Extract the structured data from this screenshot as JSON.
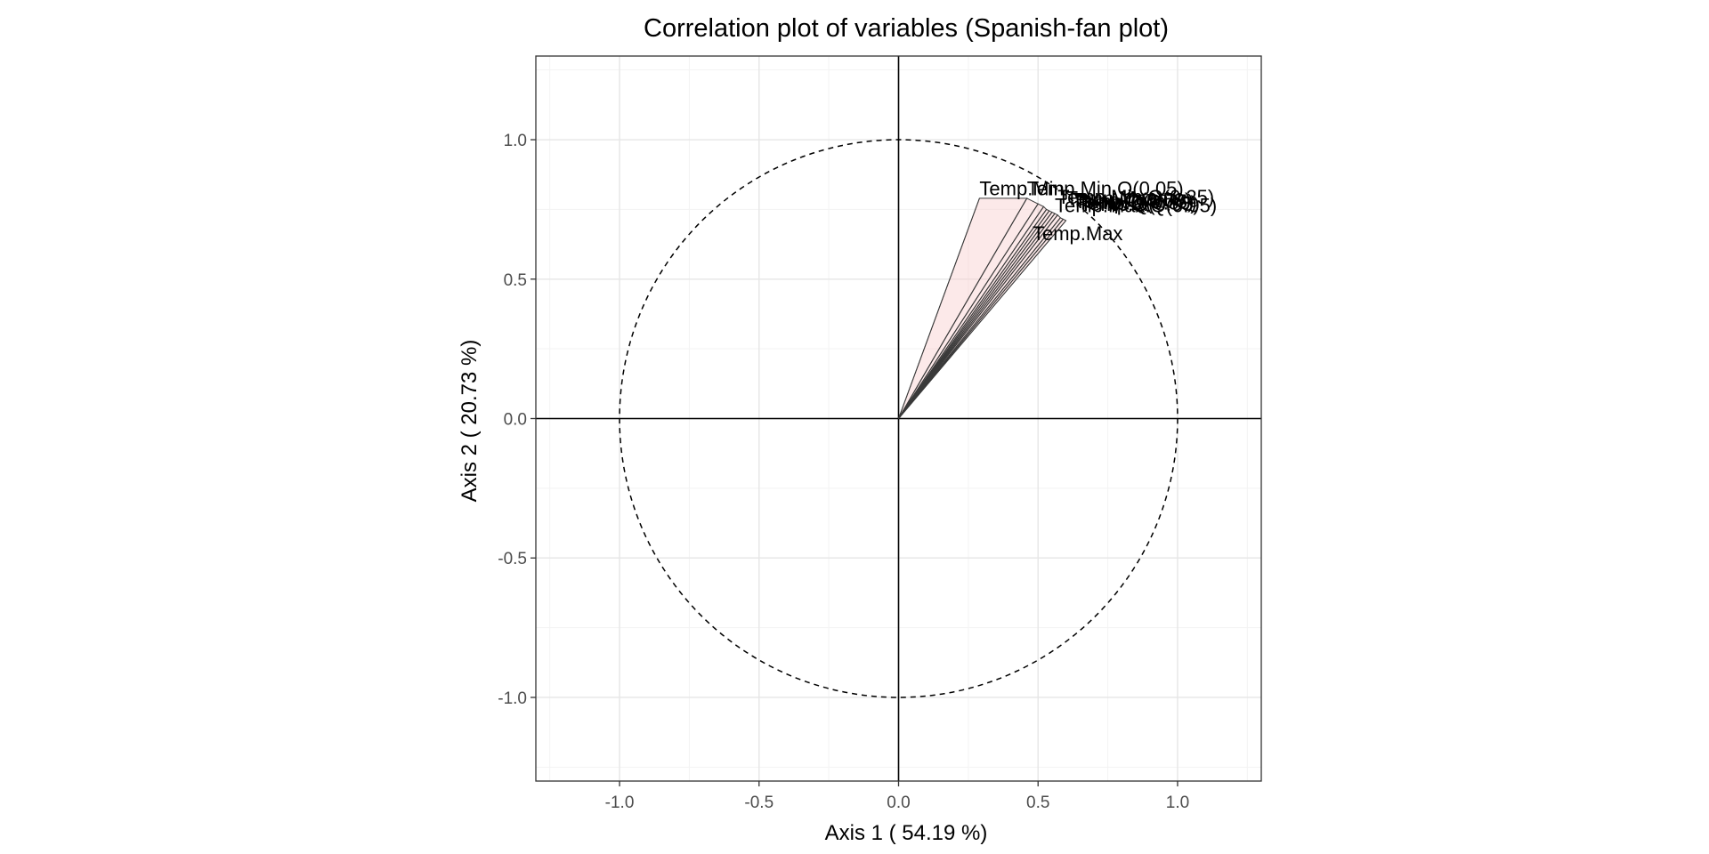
{
  "chart_data": {
    "type": "scatter",
    "subtype": "correlation-circle-fan",
    "title": "Correlation plot of variables (Spanish-fan plot)",
    "xlabel": "Axis  1  ( 54.19 %)",
    "ylabel": "Axis  2  ( 20.73 %)",
    "xlim": [
      -1.3,
      1.3
    ],
    "ylim": [
      -1.3,
      1.3
    ],
    "x_ticks": [
      -1.0,
      -0.5,
      0.0,
      0.5,
      1.0
    ],
    "x_tick_labels": [
      "-1.0",
      "-0.5",
      "0.0",
      "0.5",
      "1.0"
    ],
    "y_ticks": [
      -1.0,
      -0.5,
      0.0,
      0.5,
      1.0
    ],
    "y_tick_labels": [
      "-1.0",
      "-0.5",
      "0.0",
      "0.5",
      "1.0"
    ],
    "grid": true,
    "unit_circle": true,
    "colors": {
      "fan_fill": "#f9cfcf",
      "fan_stroke": "#3a3a3a",
      "grid_major": "#e6e6e6",
      "grid_minor": "#f3f3f3",
      "panel_border": "#333333"
    },
    "variables": [
      {
        "name": "Temp.Min",
        "x": 0.29,
        "y": 0.79
      },
      {
        "name": "Temp.Min.Q(0.05)",
        "x": 0.46,
        "y": 0.79
      },
      {
        "name": "",
        "x": 0.5,
        "y": 0.77
      },
      {
        "name": "",
        "x": 0.52,
        "y": 0.76
      },
      {
        "name": "",
        "x": 0.53,
        "y": 0.75
      },
      {
        "name": "",
        "x": 0.54,
        "y": 0.745
      },
      {
        "name": "",
        "x": 0.55,
        "y": 0.74
      },
      {
        "name": "",
        "x": 0.56,
        "y": 0.735
      },
      {
        "name": "",
        "x": 0.57,
        "y": 0.73
      },
      {
        "name": "",
        "x": 0.58,
        "y": 0.72
      },
      {
        "name": "",
        "x": 0.59,
        "y": 0.715
      },
      {
        "name": "Temp.Max",
        "x": 0.6,
        "y": 0.71
      }
    ],
    "labels": [
      {
        "text": "Temp.Min",
        "x": 0.29,
        "y": 0.8
      },
      {
        "text": "Temp.Min.Q(0.05)",
        "x": 0.46,
        "y": 0.8
      },
      {
        "text": "Temp.Min.Q(0.25)",
        "x": 0.57,
        "y": 0.77
      },
      {
        "text": "Temp.Mean",
        "x": 0.6,
        "y": 0.765
      },
      {
        "text": "Temp.Q(0.50)",
        "x": 0.62,
        "y": 0.76
      },
      {
        "text": "Temp.Q(0.75)",
        "x": 0.63,
        "y": 0.755
      },
      {
        "text": "Temp.Q(0.90)",
        "x": 0.64,
        "y": 0.75
      },
      {
        "text": "Temp.Q(0.95)",
        "x": 0.65,
        "y": 0.745
      },
      {
        "text": "Temp.Max.Q(0.95)",
        "x": 0.56,
        "y": 0.74
      },
      {
        "text": "Temp.Max",
        "x": 0.48,
        "y": 0.64
      }
    ]
  }
}
